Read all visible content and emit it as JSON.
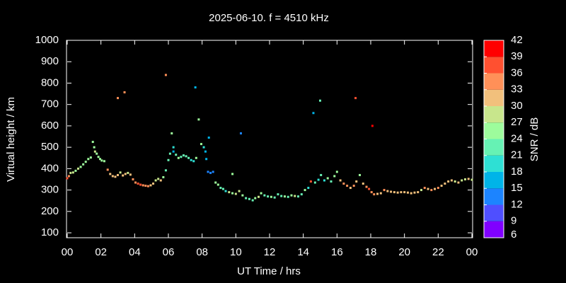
{
  "chart_data": {
    "type": "scatter",
    "title": "2025-06-10. f = 4510 kHz",
    "xlabel": "UT Time / hrs",
    "ylabel": "Virtual height / km",
    "xlim": [
      0,
      24
    ],
    "xticks": [
      {
        "value": 0,
        "label": "00"
      },
      {
        "value": 2,
        "label": "02"
      },
      {
        "value": 4,
        "label": "04"
      },
      {
        "value": 6,
        "label": "06"
      },
      {
        "value": 8,
        "label": "08"
      },
      10,
      12,
      14,
      16,
      18,
      20,
      22,
      {
        "value": 24,
        "label": "00"
      }
    ],
    "ylim": [
      77,
      1000
    ],
    "yticks": [
      100,
      200,
      300,
      400,
      500,
      600,
      700,
      800,
      900,
      1000
    ],
    "x": [
      0.0,
      0.1,
      0.2,
      0.35,
      0.5,
      0.65,
      0.8,
      0.95,
      1.1,
      1.25,
      1.4,
      1.52,
      1.6,
      1.65,
      1.75,
      1.85,
      1.95,
      2.05,
      2.2,
      2.4,
      2.55,
      2.7,
      2.85,
      3.0,
      3.15,
      3.3,
      3.45,
      3.6,
      3.75,
      3.9,
      4.05,
      4.2,
      4.35,
      4.5,
      4.65,
      4.8,
      4.95,
      5.1,
      5.25,
      5.4,
      5.55,
      5.7,
      5.85,
      6.0,
      6.1,
      6.3,
      6.45,
      6.6,
      6.75,
      6.9,
      7.05,
      7.2,
      7.35,
      7.5,
      7.65,
      7.95,
      8.1,
      8.25,
      8.35,
      8.5,
      8.65,
      8.8,
      8.95,
      9.1,
      9.25,
      9.4,
      9.6,
      9.8,
      10.0,
      10.2,
      10.4,
      10.6,
      10.8,
      11.0,
      11.15,
      11.35,
      11.5,
      11.7,
      11.9,
      12.1,
      12.3,
      12.5,
      12.7,
      12.9,
      13.1,
      13.3,
      13.5,
      13.7,
      13.9,
      14.1,
      14.3,
      14.45,
      14.7,
      14.9,
      15.05,
      15.25,
      15.45,
      15.65,
      15.85,
      16.0,
      16.2,
      16.4,
      16.6,
      16.8,
      17.0,
      17.15,
      17.35,
      17.55,
      17.75,
      17.9,
      18.05,
      18.2,
      18.4,
      18.6,
      18.8,
      19.0,
      19.2,
      19.4,
      19.6,
      19.8,
      20.0,
      20.2,
      20.4,
      20.6,
      20.8,
      21.0,
      21.2,
      21.4,
      21.6,
      21.8,
      22.0,
      22.2,
      22.4,
      22.6,
      22.8,
      23.0,
      23.2,
      23.4,
      23.6,
      23.8,
      24.0,
      3.0,
      3.4,
      5.85,
      7.6,
      7.8,
      6.2,
      6.3,
      8.2,
      8.4,
      9.8,
      10.3,
      14.6,
      15.0,
      17.1,
      18.1
    ],
    "values": [
      355,
      365,
      380,
      382,
      390,
      400,
      408,
      420,
      432,
      445,
      452,
      525,
      500,
      480,
      470,
      455,
      445,
      438,
      435,
      395,
      375,
      365,
      362,
      370,
      382,
      368,
      375,
      380,
      372,
      350,
      335,
      330,
      325,
      322,
      320,
      318,
      322,
      330,
      345,
      352,
      345,
      360,
      392,
      440,
      470,
      480,
      465,
      450,
      455,
      462,
      458,
      450,
      440,
      435,
      450,
      515,
      500,
      445,
      385,
      380,
      385,
      335,
      325,
      310,
      305,
      295,
      290,
      285,
      282,
      295,
      275,
      262,
      258,
      252,
      262,
      268,
      285,
      275,
      270,
      268,
      265,
      280,
      272,
      270,
      268,
      275,
      272,
      270,
      280,
      300,
      310,
      340,
      335,
      348,
      370,
      345,
      355,
      340,
      365,
      385,
      345,
      330,
      320,
      310,
      320,
      340,
      370,
      330,
      315,
      305,
      290,
      280,
      282,
      285,
      300,
      295,
      292,
      290,
      288,
      290,
      290,
      288,
      285,
      288,
      290,
      300,
      310,
      305,
      300,
      305,
      310,
      320,
      330,
      340,
      345,
      340,
      335,
      345,
      350,
      352,
      348,
      730,
      757,
      838,
      780,
      630,
      565,
      500,
      480,
      545,
      375,
      565,
      660,
      718,
      730,
      600
    ],
    "snr": [
      37,
      35,
      28,
      27,
      26,
      27,
      26,
      25,
      26,
      25,
      26,
      26,
      25,
      28,
      26,
      25,
      26,
      26,
      25,
      34,
      32,
      31,
      32,
      31,
      29,
      32,
      31,
      29,
      31,
      34,
      35,
      37,
      36,
      35,
      34,
      33,
      32,
      31,
      29,
      28,
      30,
      24,
      22,
      21,
      22,
      17,
      22,
      25,
      23,
      22,
      21,
      22,
      19,
      18,
      24,
      25,
      20,
      17,
      14,
      13,
      14,
      26,
      25,
      22,
      21,
      20,
      28,
      24,
      29,
      27,
      24,
      22,
      21,
      23,
      25,
      28,
      24,
      23,
      22,
      25,
      23,
      21,
      22,
      24,
      23,
      25,
      27,
      23,
      21,
      25,
      20,
      37,
      22,
      19,
      21,
      20,
      24,
      22,
      25,
      24,
      31,
      33,
      34,
      32,
      33,
      30,
      25,
      31,
      34,
      36,
      35,
      33,
      32,
      31,
      33,
      32,
      31,
      30,
      31,
      30,
      31,
      30,
      32,
      31,
      30,
      29,
      33,
      31,
      34,
      32,
      33,
      31,
      30,
      32,
      31,
      29,
      30,
      28,
      29,
      30,
      29,
      34,
      33,
      34,
      16,
      25,
      24,
      18,
      15,
      15,
      24,
      12,
      15,
      21,
      36,
      39
    ],
    "colorbar": {
      "label": "SNR / dB",
      "ticks": [
        6,
        9,
        12,
        15,
        18,
        21,
        24,
        27,
        30,
        33,
        36,
        39,
        42
      ],
      "colors": [
        "#8000ff",
        "#4f4fff",
        "#1c84ff",
        "#00b4e8",
        "#2ee0d4",
        "#66f2b4",
        "#9dfc9c",
        "#c8e68c",
        "#f2c07c",
        "#ff9058",
        "#ff5030",
        "#ff0000"
      ]
    }
  }
}
